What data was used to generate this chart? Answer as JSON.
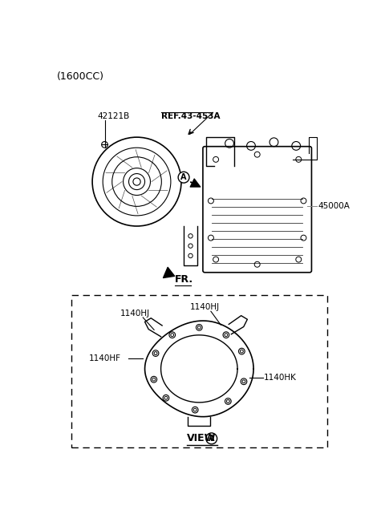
{
  "bg_color": "#ffffff",
  "line_color": "#000000",
  "gray_color": "#888888",
  "title_text": "(1600CC)",
  "label_42121B": "42121B",
  "label_REF": "REF.43-453A",
  "label_45000A": "45000A",
  "label_FR": "FR.",
  "label_1140HJ_left": "1140HJ",
  "label_1140HJ_right": "1140HJ",
  "label_1140HF": "1140HF",
  "label_1140HK": "1140HK",
  "label_VIEW": "VIEW",
  "label_A": "A"
}
